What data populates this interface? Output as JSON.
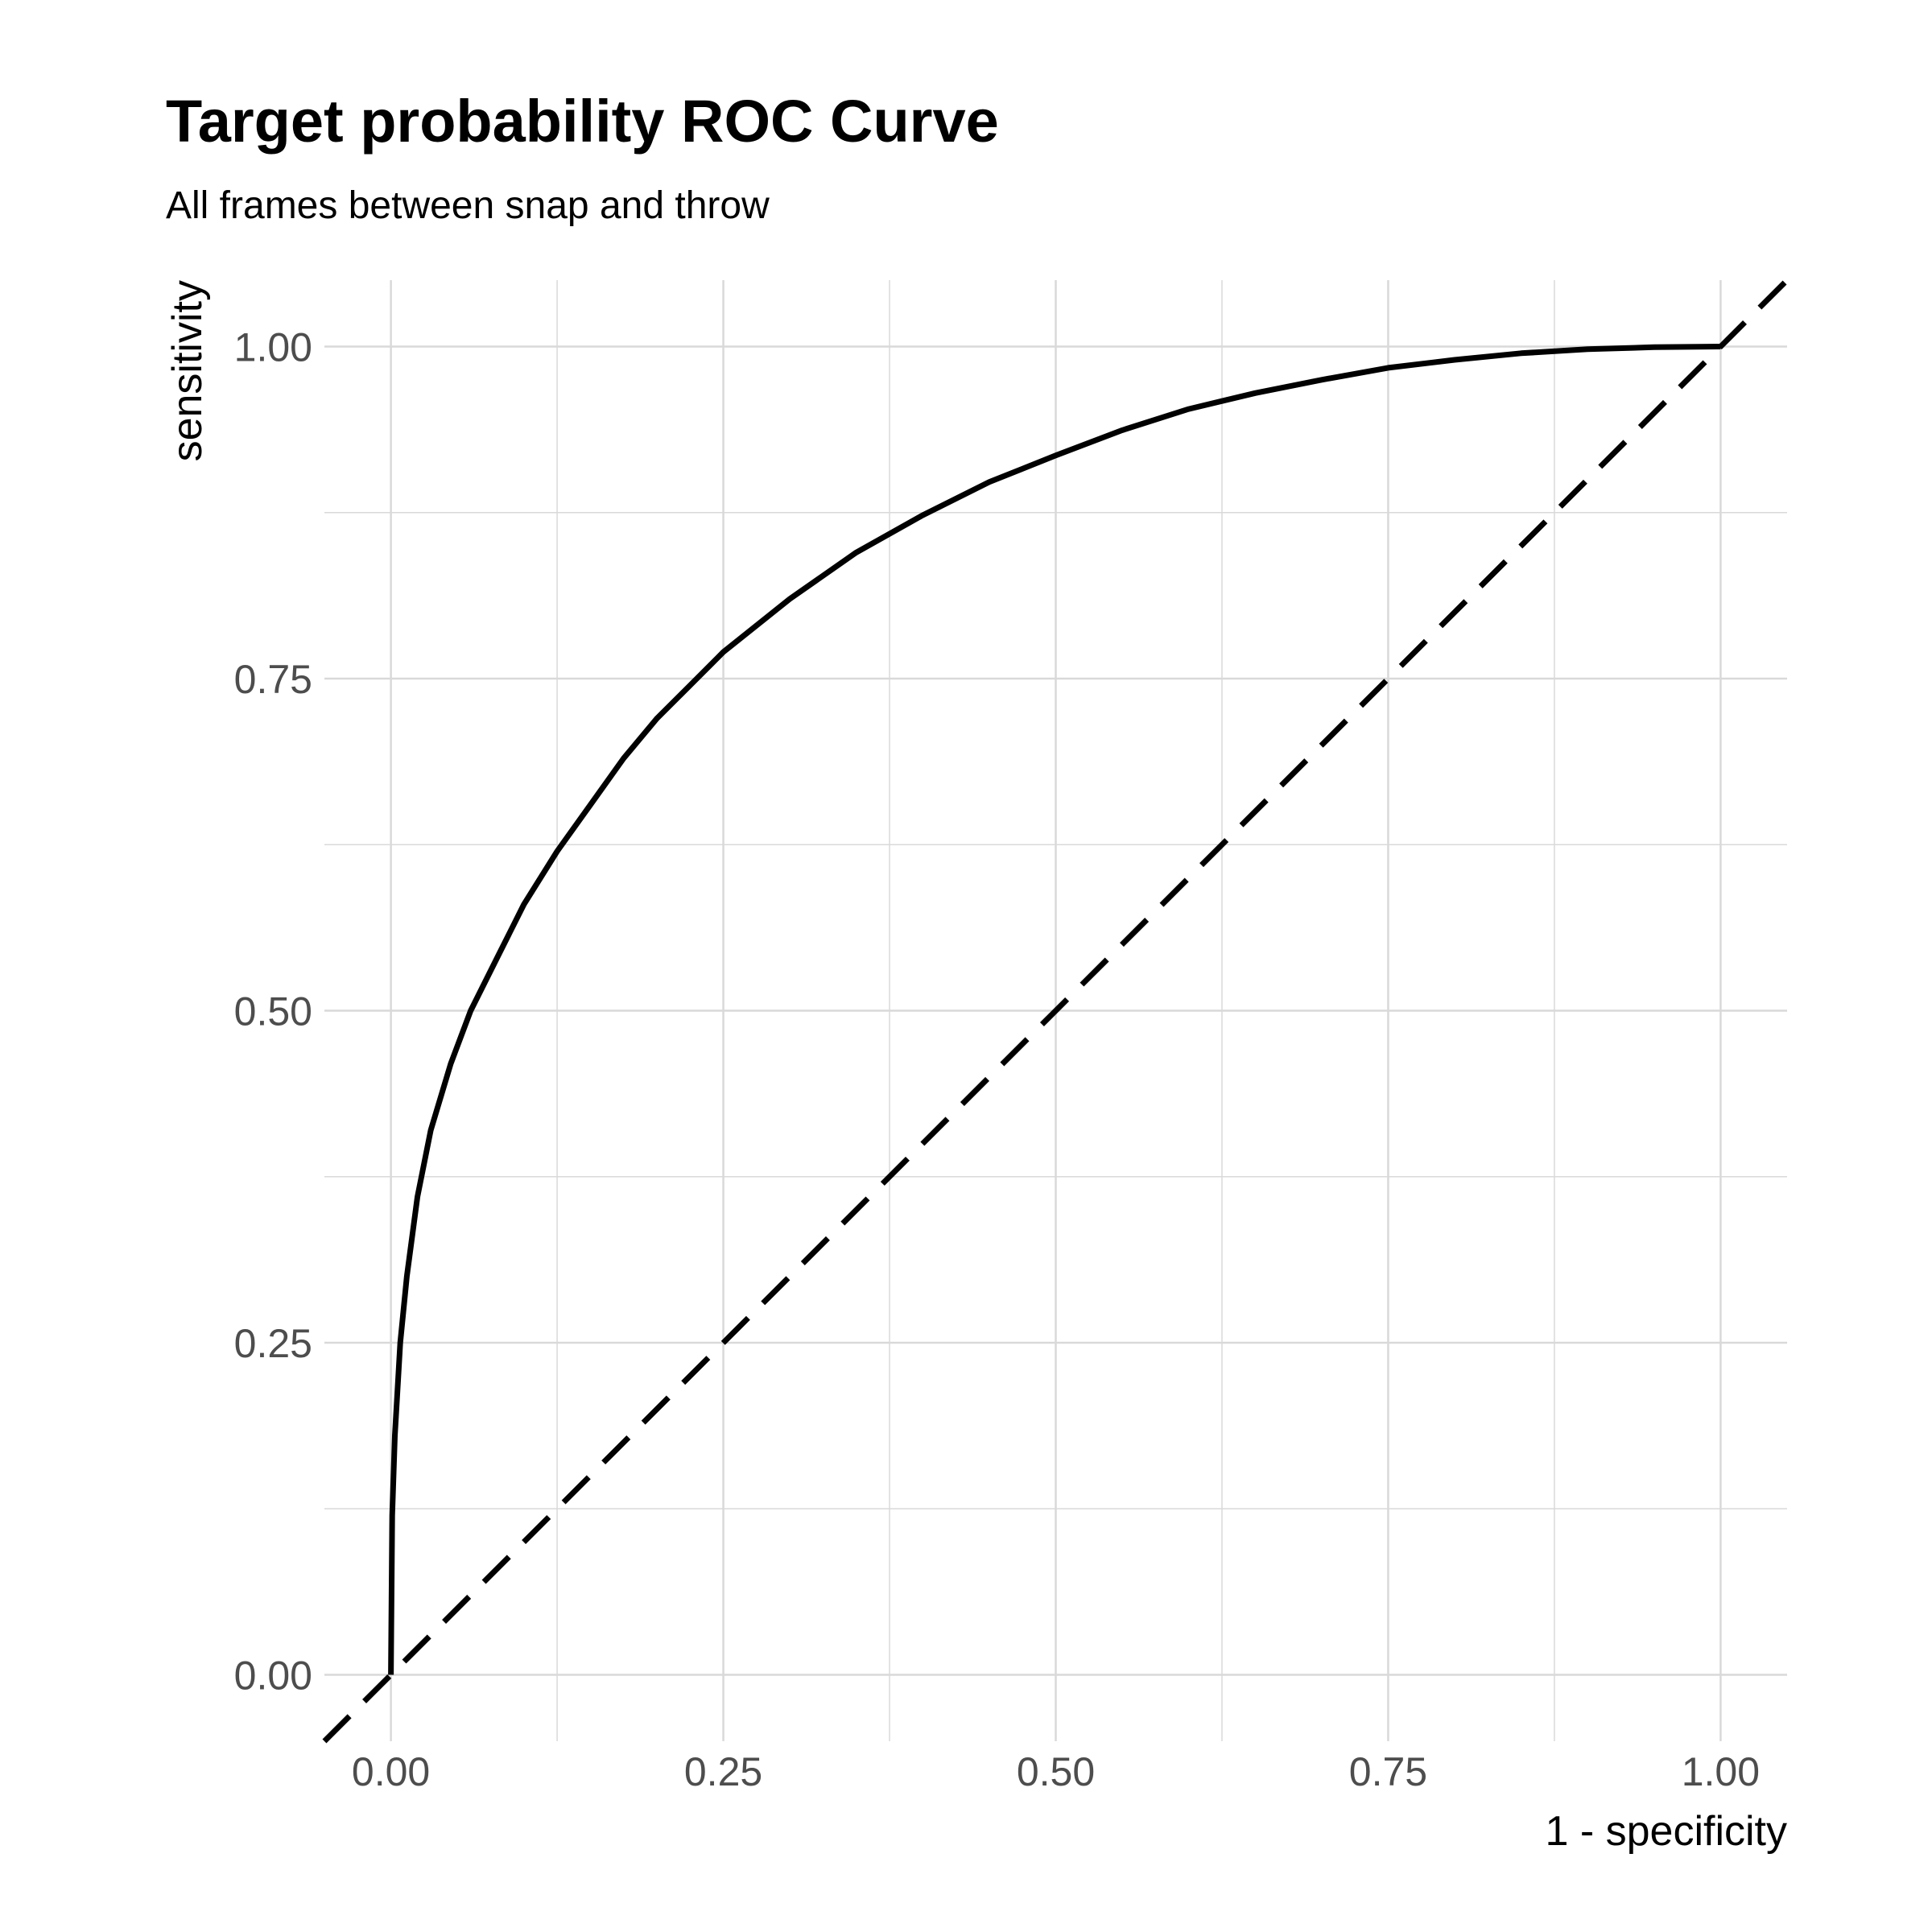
{
  "title": "Target probability ROC Curve",
  "subtitle": "All frames between snap and throw",
  "colors": {
    "background": "#ffffff",
    "grid": "#d9d9d9",
    "tick_label": "#4d4d4d",
    "axis_title": "#000000",
    "curve": "#000000",
    "reference_line": "#000000"
  },
  "chart_data": {
    "type": "line",
    "title": "Target probability ROC Curve",
    "subtitle": "All frames between snap and throw",
    "xlabel": "1 - specificity",
    "ylabel": "sensitivity",
    "xlim": [
      -0.05,
      1.05
    ],
    "ylim": [
      -0.05,
      1.05
    ],
    "x_ticks": [
      0,
      0.25,
      0.5,
      0.75,
      1
    ],
    "y_ticks": [
      0,
      0.25,
      0.5,
      0.75,
      1
    ],
    "x_tick_labels": [
      "0.00",
      "0.25",
      "0.50",
      "0.75",
      "1.00"
    ],
    "y_tick_labels": [
      "0.00",
      "0.25",
      "0.50",
      "0.75",
      "1.00"
    ],
    "grid": true,
    "minor_grid": true,
    "legend": "none",
    "series": [
      {
        "style": "solid",
        "x": [
          0,
          0.001,
          0.003,
          0.007,
          0.012,
          0.02,
          0.03,
          0.045,
          0.06,
          0.08,
          0.1,
          0.125,
          0.15,
          0.175,
          0.2,
          0.225,
          0.25,
          0.275,
          0.3,
          0.35,
          0.4,
          0.45,
          0.5,
          0.55,
          0.6,
          0.65,
          0.7,
          0.75,
          0.8,
          0.85,
          0.9,
          0.95,
          1
        ],
        "y": [
          0,
          0.12,
          0.18,
          0.25,
          0.3,
          0.36,
          0.41,
          0.46,
          0.5,
          0.54,
          0.58,
          0.62,
          0.655,
          0.69,
          0.72,
          0.745,
          0.77,
          0.79,
          0.81,
          0.845,
          0.873,
          0.898,
          0.918,
          0.937,
          0.953,
          0.965,
          0.975,
          0.984,
          0.99,
          0.995,
          0.998,
          0.9995,
          1
        ]
      },
      {
        "style": "dashed",
        "x": [
          -0.05,
          1.05
        ],
        "y": [
          -0.05,
          1.05
        ]
      }
    ]
  }
}
